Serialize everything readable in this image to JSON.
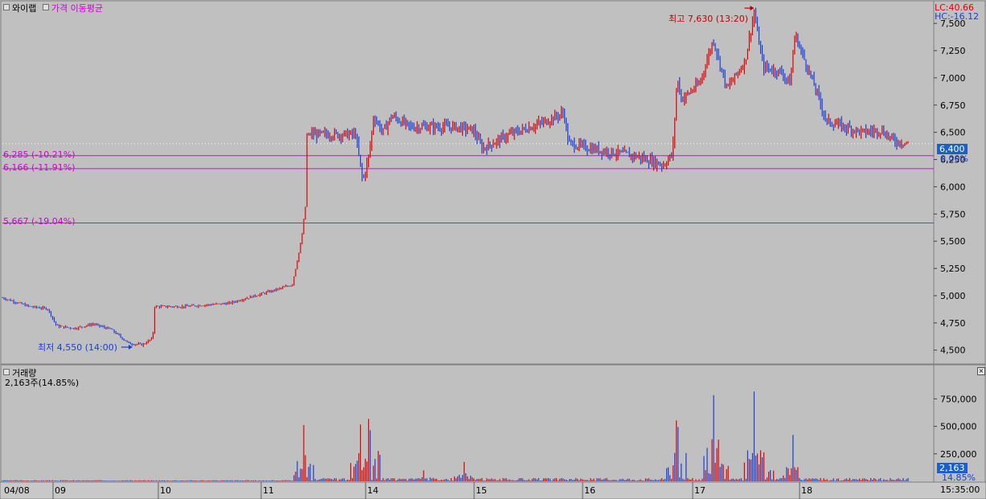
{
  "colors": {
    "up": "#e00000",
    "down": "#1a3fd6",
    "ma_line": "#ff00ff",
    "level_line": "#e000e0",
    "price_badge": "#1c5fc9",
    "volume_badge": "#1c5fc9",
    "lc_text": "#e00000",
    "hc_text": "#1a3fd6",
    "background": "#c0c0c0",
    "grid": "#ffffff"
  },
  "price_panel": {
    "legend_stock": "와이랩",
    "legend_ma": "가격 이동평균",
    "lc_label": "LC:40.66",
    "hc_label": "HC:-16.12",
    "current_price": "6,400",
    "current_pct": "0.00%",
    "high_annotation": "최고 7,630 (13:20)",
    "low_annotation": "최저 4,550 (14:00)",
    "levels": [
      {
        "price": 6285,
        "label": "6,285 (-10.21%)"
      },
      {
        "price": 6166,
        "label": "6,166 (-11.91%)"
      },
      {
        "price": 5667,
        "label": "5,667 (-19.04%)"
      }
    ]
  },
  "volume_panel": {
    "title": "거래량",
    "subtitle": "2,163주(14.85%)",
    "current_value": "2,163",
    "current_pct": "14.85%"
  },
  "time_axis": {
    "last_time": "15:35:00"
  },
  "chart_data": {
    "type": "candlestick",
    "title": "와이랩",
    "y_ticks": [
      4500,
      4750,
      5000,
      5250,
      5500,
      5750,
      6000,
      6250,
      6500,
      6750,
      7000,
      7250,
      7500
    ],
    "y_tick_labels": [
      "4,500",
      "4,750",
      "5,000",
      "5,250",
      "5,500",
      "5,750",
      "6,000",
      "6,250",
      "6,500",
      "6,750",
      "7,000",
      "7,250",
      "7,500"
    ],
    "ylim": [
      4380,
      7700
    ],
    "volume_ticks": [
      250000,
      500000,
      750000
    ],
    "volume_tick_labels": [
      "250,000",
      "500,000",
      "750,000"
    ],
    "volume_ylim": [
      0,
      950000
    ],
    "x_labels": [
      "04/08",
      "09",
      "10",
      "11",
      "14",
      "15",
      "16",
      "17",
      "18"
    ],
    "price_path": [
      [
        0,
        4980
      ],
      [
        0.03,
        4900
      ],
      [
        0.05,
        4880
      ],
      [
        0.06,
        4720
      ],
      [
        0.08,
        4700
      ],
      [
        0.1,
        4740
      ],
      [
        0.12,
        4690
      ],
      [
        0.14,
        4560
      ],
      [
        0.155,
        4550
      ],
      [
        0.166,
        4610
      ],
      [
        0.168,
        4900
      ],
      [
        0.2,
        4900
      ],
      [
        0.25,
        4930
      ],
      [
        0.3,
        5050
      ],
      [
        0.32,
        5100
      ],
      [
        0.33,
        5500
      ],
      [
        0.335,
        5850
      ],
      [
        0.336,
        6480
      ],
      [
        0.39,
        6480
      ],
      [
        0.395,
        6200
      ],
      [
        0.398,
        6050
      ],
      [
        0.405,
        6300
      ],
      [
        0.41,
        6650
      ],
      [
        0.42,
        6500
      ],
      [
        0.43,
        6650
      ],
      [
        0.45,
        6550
      ],
      [
        0.5,
        6550
      ],
      [
        0.52,
        6520
      ],
      [
        0.53,
        6350
      ],
      [
        0.56,
        6480
      ],
      [
        0.6,
        6600
      ],
      [
        0.62,
        6680
      ],
      [
        0.625,
        6400
      ],
      [
        0.65,
        6350
      ],
      [
        0.7,
        6280
      ],
      [
        0.73,
        6200
      ],
      [
        0.74,
        6300
      ],
      [
        0.745,
        7000
      ],
      [
        0.75,
        6800
      ],
      [
        0.77,
        6950
      ],
      [
        0.785,
        7350
      ],
      [
        0.8,
        6900
      ],
      [
        0.82,
        7150
      ],
      [
        0.83,
        7600
      ],
      [
        0.84,
        7100
      ],
      [
        0.86,
        7050
      ],
      [
        0.87,
        6950
      ],
      [
        0.875,
        7400
      ],
      [
        0.9,
        6850
      ],
      [
        0.91,
        6600
      ],
      [
        0.93,
        6550
      ],
      [
        0.95,
        6500
      ],
      [
        0.97,
        6520
      ],
      [
        0.985,
        6420
      ],
      [
        1.0,
        6400
      ]
    ],
    "volume_spikes": [
      [
        0.333,
        560000
      ],
      [
        0.395,
        580000
      ],
      [
        0.405,
        790000
      ],
      [
        0.465,
        100000
      ],
      [
        0.51,
        180000
      ],
      [
        0.745,
        800000
      ],
      [
        0.785,
        900000
      ],
      [
        0.83,
        820000
      ],
      [
        0.873,
        420000
      ],
      [
        0.79,
        500000
      ],
      [
        0.84,
        360000
      ]
    ]
  }
}
